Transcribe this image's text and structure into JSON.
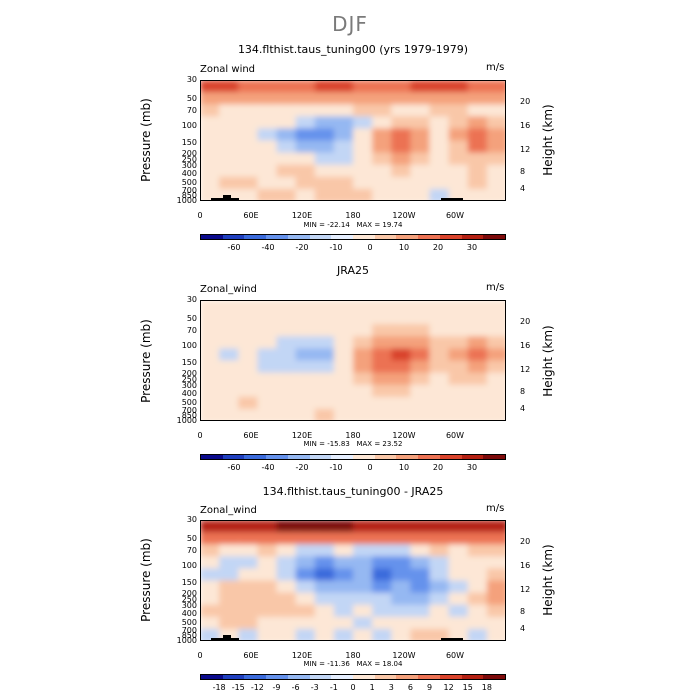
{
  "page_title": "DJF",
  "colorbar_colors": [
    "#0a0a8c",
    "#1f3fbf",
    "#3b6bdc",
    "#6592ec",
    "#95b8f2",
    "#c2d6f5",
    "#e6efff",
    "#fde7d6",
    "#f9c7a8",
    "#f4a17c",
    "#ec7253",
    "#d9432b",
    "#b42012",
    "#7d0a0a"
  ],
  "chart_data": [
    {
      "type": "heatmap",
      "title": "134.flthist.taus_tuning00 (yrs 1979-1979)",
      "variable_label": "Zonal wind",
      "units": "m/s",
      "ylabel": "Pressure (mb)",
      "y2label": "Height (km)",
      "x_ticks": [
        "0",
        "60E",
        "120E",
        "180",
        "120W",
        "60W"
      ],
      "y_ticks": [
        "30",
        "50",
        "70",
        "100",
        "150",
        "200",
        "250",
        "300",
        "400",
        "500",
        "700",
        "850",
        "1000"
      ],
      "y2_ticks": [
        "20",
        "16",
        "12",
        "8",
        "4"
      ],
      "min_text": "MIN = -22.14",
      "max_text": "MAX = 19.74",
      "colorbar_labels": [
        "-60",
        "-40",
        "-20",
        "-10",
        "0",
        "10",
        "20",
        "30"
      ],
      "field": [
        [
          4,
          4,
          3,
          3,
          3,
          3,
          4,
          4,
          3,
          3,
          3,
          4,
          4,
          4,
          3,
          3
        ],
        [
          2,
          2,
          2,
          2,
          2,
          2,
          2,
          2,
          2,
          2,
          2,
          2,
          2,
          2,
          2,
          2
        ],
        [
          1,
          0,
          0,
          0,
          0,
          0,
          0,
          0,
          1,
          1,
          0,
          0,
          1,
          1,
          0,
          0
        ],
        [
          0,
          0,
          0,
          0,
          0,
          -1,
          -2,
          -2,
          -1,
          0,
          1,
          1,
          0,
          1,
          2,
          1
        ],
        [
          0,
          0,
          0,
          -1,
          -2,
          -3,
          -3,
          -2,
          0,
          2,
          3,
          2,
          0,
          2,
          3,
          2
        ],
        [
          0,
          0,
          0,
          0,
          -1,
          -2,
          -2,
          -1,
          0,
          2,
          3,
          2,
          0,
          1,
          3,
          2
        ],
        [
          0,
          0,
          0,
          0,
          0,
          0,
          -1,
          -1,
          0,
          1,
          2,
          1,
          0,
          1,
          1,
          1
        ],
        [
          0,
          0,
          0,
          0,
          1,
          1,
          0,
          0,
          0,
          0,
          1,
          0,
          0,
          0,
          1,
          0
        ],
        [
          0,
          1,
          1,
          0,
          0,
          1,
          1,
          1,
          0,
          0,
          0,
          0,
          0,
          0,
          1,
          0
        ],
        [
          0,
          0,
          0,
          1,
          1,
          0,
          1,
          1,
          1,
          0,
          0,
          0,
          -1,
          0,
          0,
          0
        ]
      ]
    },
    {
      "type": "heatmap",
      "title": "JRA25",
      "variable_label": "Zonal_wind",
      "units": "m/s",
      "ylabel": "Pressure (mb)",
      "y2label": "Height (km)",
      "x_ticks": [
        "0",
        "60E",
        "120E",
        "180",
        "120W",
        "60W"
      ],
      "y_ticks": [
        "30",
        "50",
        "70",
        "100",
        "150",
        "200",
        "250",
        "300",
        "400",
        "500",
        "700",
        "850",
        "1000"
      ],
      "y2_ticks": [
        "20",
        "16",
        "12",
        "8",
        "4"
      ],
      "min_text": "MIN = -15.83",
      "max_text": "MAX = 23.52",
      "colorbar_labels": [
        "-60",
        "-40",
        "-20",
        "-10",
        "0",
        "10",
        "20",
        "30"
      ],
      "field": [
        [
          0,
          0,
          0,
          0,
          0,
          0,
          0,
          0,
          0,
          0,
          0,
          0,
          0,
          0,
          0,
          0
        ],
        [
          0,
          0,
          0,
          0,
          0,
          0,
          0,
          0,
          0,
          0,
          0,
          0,
          0,
          0,
          0,
          0
        ],
        [
          0,
          0,
          0,
          0,
          0,
          0,
          0,
          0,
          0,
          1,
          1,
          1,
          0,
          0,
          0,
          0
        ],
        [
          0,
          0,
          0,
          0,
          -1,
          -1,
          -1,
          0,
          1,
          2,
          2,
          2,
          1,
          1,
          2,
          1
        ],
        [
          0,
          -1,
          0,
          -1,
          -1,
          -2,
          -2,
          0,
          2,
          3,
          4,
          3,
          1,
          2,
          3,
          2
        ],
        [
          0,
          0,
          0,
          -1,
          -1,
          -1,
          -1,
          0,
          2,
          3,
          3,
          2,
          1,
          1,
          2,
          1
        ],
        [
          0,
          0,
          0,
          0,
          0,
          0,
          0,
          0,
          1,
          2,
          2,
          1,
          0,
          1,
          1,
          0
        ],
        [
          0,
          0,
          0,
          0,
          0,
          0,
          0,
          0,
          0,
          1,
          1,
          0,
          0,
          0,
          0,
          0
        ],
        [
          0,
          0,
          1,
          0,
          0,
          0,
          0,
          0,
          0,
          0,
          0,
          0,
          0,
          0,
          0,
          0
        ],
        [
          0,
          0,
          0,
          0,
          0,
          0,
          1,
          0,
          0,
          0,
          0,
          0,
          0,
          0,
          0,
          0
        ]
      ]
    },
    {
      "type": "heatmap",
      "title": "134.flthist.taus_tuning00 - JRA25",
      "variable_label": "Zonal_wind",
      "units": "m/s",
      "ylabel": "Pressure (mb)",
      "y2label": "Height (km)",
      "x_ticks": [
        "0",
        "60E",
        "120E",
        "180",
        "120W",
        "60W"
      ],
      "y_ticks": [
        "30",
        "50",
        "70",
        "100",
        "150",
        "200",
        "250",
        "300",
        "400",
        "500",
        "700",
        "850",
        "1000"
      ],
      "y2_ticks": [
        "20",
        "16",
        "12",
        "8",
        "4"
      ],
      "min_text": "MIN = -11.36",
      "max_text": "MAX = 18.04",
      "colorbar_labels": [
        "-18",
        "-15",
        "-12",
        "-9",
        "-6",
        "-3",
        "-1",
        "0",
        "1",
        "3",
        "6",
        "9",
        "12",
        "15",
        "18"
      ],
      "field": [
        [
          5,
          5,
          5,
          5,
          6,
          6,
          6,
          6,
          5,
          5,
          5,
          5,
          5,
          5,
          5,
          5
        ],
        [
          3,
          3,
          3,
          3,
          3,
          3,
          3,
          3,
          3,
          3,
          3,
          3,
          3,
          3,
          3,
          3
        ],
        [
          1,
          0,
          0,
          1,
          0,
          -1,
          -1,
          0,
          -1,
          -1,
          -1,
          0,
          1,
          0,
          1,
          1
        ],
        [
          0,
          -1,
          -1,
          0,
          -1,
          -2,
          -3,
          -2,
          -2,
          -3,
          -3,
          -2,
          -1,
          0,
          0,
          0
        ],
        [
          -1,
          -1,
          0,
          0,
          -1,
          -3,
          -4,
          -3,
          -2,
          -4,
          -3,
          -3,
          -1,
          0,
          0,
          1
        ],
        [
          0,
          1,
          1,
          1,
          0,
          -1,
          -2,
          -2,
          -2,
          -3,
          -2,
          -3,
          -2,
          -1,
          0,
          2
        ],
        [
          0,
          1,
          1,
          1,
          1,
          0,
          -1,
          -1,
          -1,
          -1,
          -2,
          -2,
          -1,
          0,
          1,
          2
        ],
        [
          1,
          1,
          1,
          1,
          1,
          1,
          0,
          -1,
          0,
          -1,
          -1,
          -1,
          0,
          -1,
          0,
          1
        ],
        [
          0,
          1,
          1,
          0,
          0,
          0,
          0,
          0,
          -1,
          0,
          0,
          0,
          0,
          0,
          0,
          0
        ],
        [
          -1,
          0,
          -1,
          0,
          0,
          -1,
          0,
          -1,
          0,
          -1,
          0,
          1,
          1,
          0,
          -1,
          0
        ]
      ]
    }
  ]
}
